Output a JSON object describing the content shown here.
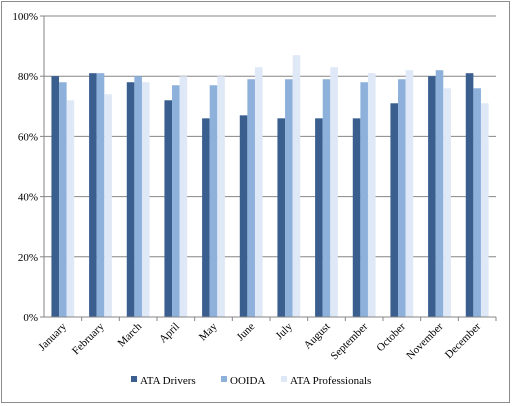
{
  "chart_data": {
    "type": "bar",
    "categories": [
      "January",
      "February",
      "March",
      "April",
      "May",
      "June",
      "July",
      "August",
      "September",
      "October",
      "November",
      "December"
    ],
    "series": [
      {
        "name": "ATA Drivers",
        "color": "#3a5f8f",
        "values": [
          80,
          81,
          78,
          72,
          66,
          67,
          66,
          66,
          66,
          71,
          80,
          81
        ]
      },
      {
        "name": "OOIDA",
        "color": "#8eb1dc",
        "values": [
          78,
          81,
          80,
          77,
          77,
          79,
          79,
          79,
          78,
          79,
          82,
          76
        ]
      },
      {
        "name": "ATA Professionals",
        "color": "#dfe8f6",
        "values": [
          72,
          74,
          78,
          80,
          80,
          83,
          87,
          83,
          81,
          82,
          76,
          71
        ]
      }
    ],
    "y_ticks": [
      "0%",
      "20%",
      "40%",
      "60%",
      "80%",
      "100%"
    ],
    "ylim": [
      0,
      100
    ],
    "grid": true,
    "legend_position": "bottom"
  }
}
